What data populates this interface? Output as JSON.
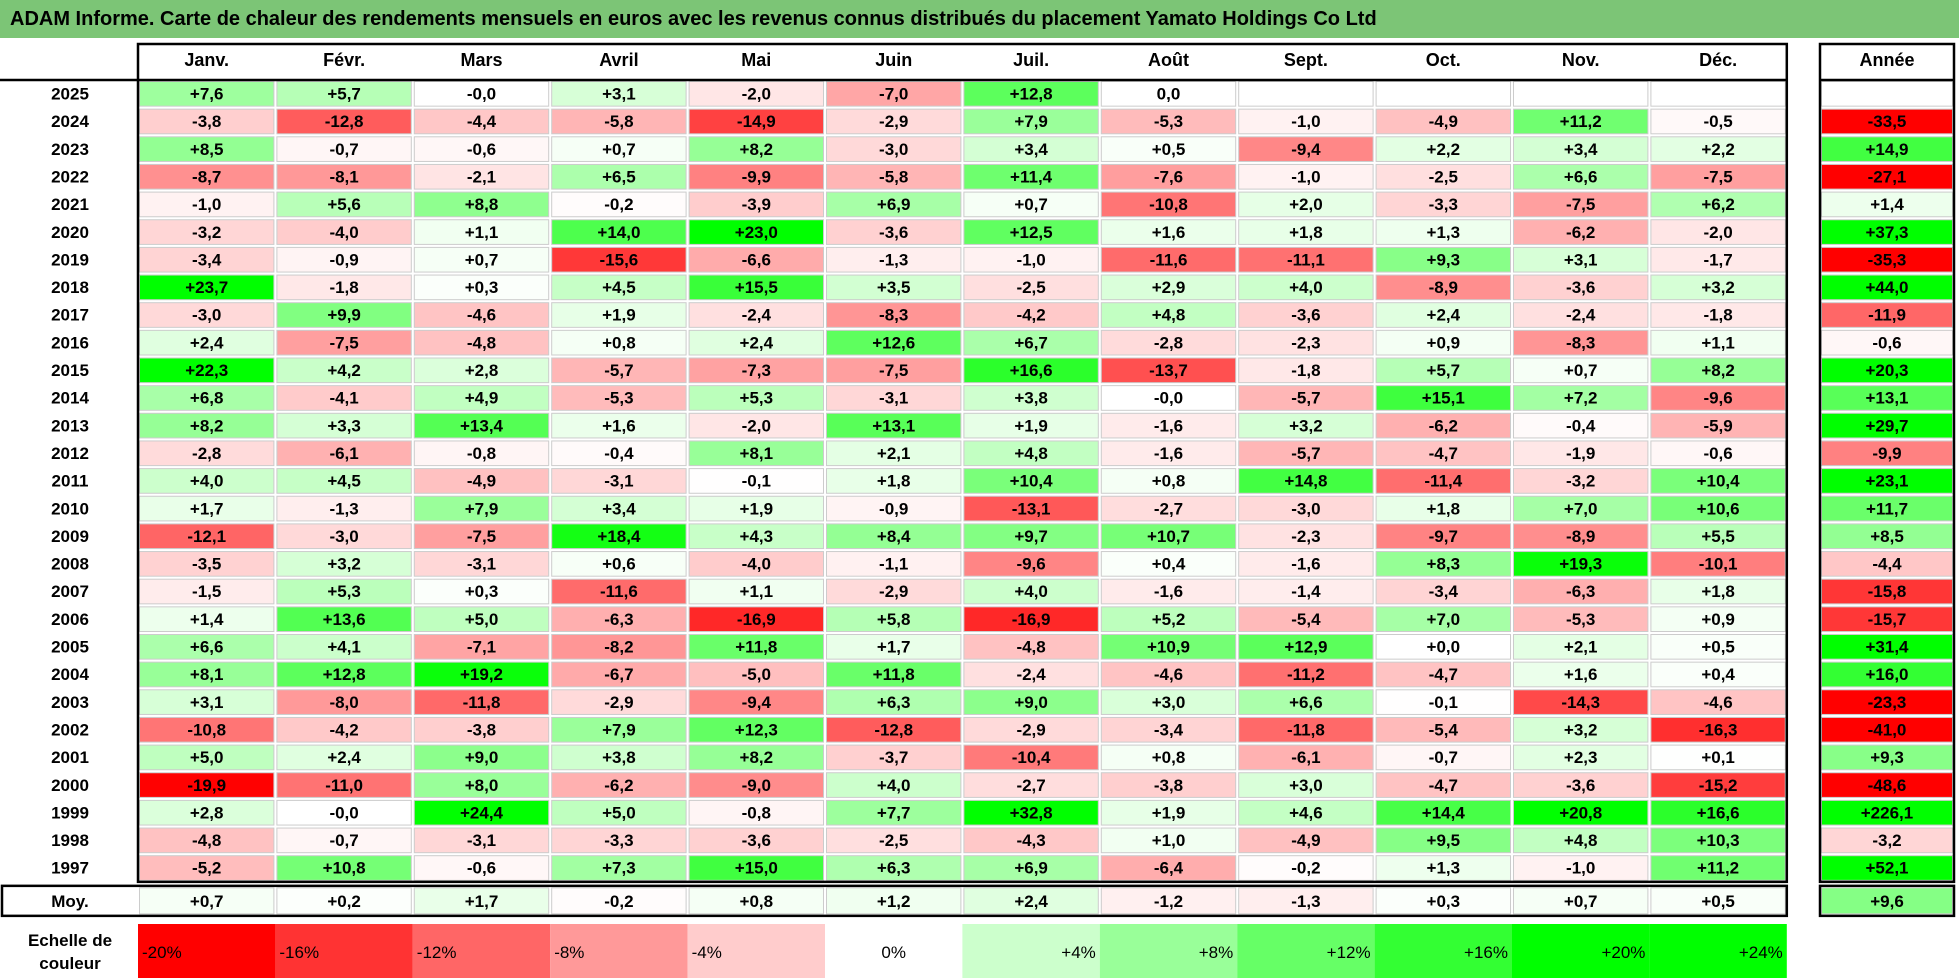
{
  "title": "ADAM Informe. Carte de chaleur des rendements mensuels en euros avec les revenus connus distribués du placement Yamato Holdings Co Ltd",
  "chart_data": {
    "type": "heatmap",
    "title": "ADAM Informe. Carte de chaleur des rendements mensuels en euros avec les revenus connus distribués du placement Yamato Holdings Co Ltd",
    "columns": [
      "Janv.",
      "Févr.",
      "Mars",
      "Avril",
      "Mai",
      "Juin",
      "Juil.",
      "Août",
      "Sept.",
      "Oct.",
      "Nov.",
      "Déc."
    ],
    "year_header": "Année",
    "rows": [
      {
        "year": "2025",
        "values": [
          "+7,6",
          "+5,7",
          "-0,0",
          "+3,1",
          "-2,0",
          "-7,0",
          "+12,8",
          "0,0",
          "",
          "",
          "",
          ""
        ],
        "annual": ""
      },
      {
        "year": "2024",
        "values": [
          "-3,8",
          "-12,8",
          "-4,4",
          "-5,8",
          "-14,9",
          "-2,9",
          "+7,9",
          "-5,3",
          "-1,0",
          "-4,9",
          "+11,2",
          "-0,5"
        ],
        "annual": "-33,5"
      },
      {
        "year": "2023",
        "values": [
          "+8,5",
          "-0,7",
          "-0,6",
          "+0,7",
          "+8,2",
          "-3,0",
          "+3,4",
          "+0,5",
          "-9,4",
          "+2,2",
          "+3,4",
          "+2,2"
        ],
        "annual": "+14,9"
      },
      {
        "year": "2022",
        "values": [
          "-8,7",
          "-8,1",
          "-2,1",
          "+6,5",
          "-9,9",
          "-5,8",
          "+11,4",
          "-7,6",
          "-1,0",
          "-2,5",
          "+6,6",
          "-7,5"
        ],
        "annual": "-27,1"
      },
      {
        "year": "2021",
        "values": [
          "-1,0",
          "+5,6",
          "+8,8",
          "-0,2",
          "-3,9",
          "+6,9",
          "+0,7",
          "-10,8",
          "+2,0",
          "-3,3",
          "-7,5",
          "+6,2"
        ],
        "annual": "+1,4"
      },
      {
        "year": "2020",
        "values": [
          "-3,2",
          "-4,0",
          "+1,1",
          "+14,0",
          "+23,0",
          "-3,6",
          "+12,5",
          "+1,6",
          "+1,8",
          "+1,3",
          "-6,2",
          "-2,0"
        ],
        "annual": "+37,3"
      },
      {
        "year": "2019",
        "values": [
          "-3,4",
          "-0,9",
          "+0,7",
          "-15,6",
          "-6,6",
          "-1,3",
          "-1,0",
          "-11,6",
          "-11,1",
          "+9,3",
          "+3,1",
          "-1,7"
        ],
        "annual": "-35,3"
      },
      {
        "year": "2018",
        "values": [
          "+23,7",
          "-1,8",
          "+0,3",
          "+4,5",
          "+15,5",
          "+3,5",
          "-2,5",
          "+2,9",
          "+4,0",
          "-8,9",
          "-3,6",
          "+3,2"
        ],
        "annual": "+44,0"
      },
      {
        "year": "2017",
        "values": [
          "-3,0",
          "+9,9",
          "-4,6",
          "+1,9",
          "-2,4",
          "-8,3",
          "-4,2",
          "+4,8",
          "-3,6",
          "+2,4",
          "-2,4",
          "-1,8"
        ],
        "annual": "-11,9"
      },
      {
        "year": "2016",
        "values": [
          "+2,4",
          "-7,5",
          "-4,8",
          "+0,8",
          "+2,4",
          "+12,6",
          "+6,7",
          "-2,8",
          "-2,3",
          "+0,9",
          "-8,3",
          "+1,1"
        ],
        "annual": "-0,6"
      },
      {
        "year": "2015",
        "values": [
          "+22,3",
          "+4,2",
          "+2,8",
          "-5,7",
          "-7,3",
          "-7,5",
          "+16,6",
          "-13,7",
          "-1,8",
          "+5,7",
          "+0,7",
          "+8,2"
        ],
        "annual": "+20,3"
      },
      {
        "year": "2014",
        "values": [
          "+6,8",
          "-4,1",
          "+4,9",
          "-5,3",
          "+5,3",
          "-3,1",
          "+3,8",
          "-0,0",
          "-5,7",
          "+15,1",
          "+7,2",
          "-9,6"
        ],
        "annual": "+13,1"
      },
      {
        "year": "2013",
        "values": [
          "+8,2",
          "+3,3",
          "+13,4",
          "+1,6",
          "-2,0",
          "+13,1",
          "+1,9",
          "-1,6",
          "+3,2",
          "-6,2",
          "-0,4",
          "-5,9"
        ],
        "annual": "+29,7"
      },
      {
        "year": "2012",
        "values": [
          "-2,8",
          "-6,1",
          "-0,8",
          "-0,4",
          "+8,1",
          "+2,1",
          "+4,8",
          "-1,6",
          "-5,7",
          "-4,7",
          "-1,9",
          "-0,6"
        ],
        "annual": "-9,9"
      },
      {
        "year": "2011",
        "values": [
          "+4,0",
          "+4,5",
          "-4,9",
          "-3,1",
          "-0,1",
          "+1,8",
          "+10,4",
          "+0,8",
          "+14,8",
          "-11,4",
          "-3,2",
          "+10,4"
        ],
        "annual": "+23,1"
      },
      {
        "year": "2010",
        "values": [
          "+1,7",
          "-1,3",
          "+7,9",
          "+3,4",
          "+1,9",
          "-0,9",
          "-13,1",
          "-2,7",
          "-3,0",
          "+1,8",
          "+7,0",
          "+10,6"
        ],
        "annual": "+11,7"
      },
      {
        "year": "2009",
        "values": [
          "-12,1",
          "-3,0",
          "-7,5",
          "+18,4",
          "+4,3",
          "+8,4",
          "+9,7",
          "+10,7",
          "-2,3",
          "-9,7",
          "-8,9",
          "+5,5"
        ],
        "annual": "+8,5"
      },
      {
        "year": "2008",
        "values": [
          "-3,5",
          "+3,2",
          "-3,1",
          "+0,6",
          "-4,0",
          "-1,1",
          "-9,6",
          "+0,4",
          "-1,6",
          "+8,3",
          "+19,3",
          "-10,1"
        ],
        "annual": "-4,4"
      },
      {
        "year": "2007",
        "values": [
          "-1,5",
          "+5,3",
          "+0,3",
          "-11,6",
          "+1,1",
          "-2,9",
          "+4,0",
          "-1,6",
          "-1,4",
          "-3,4",
          "-6,3",
          "+1,8"
        ],
        "annual": "-15,8"
      },
      {
        "year": "2006",
        "values": [
          "+1,4",
          "+13,6",
          "+5,0",
          "-6,3",
          "-16,9",
          "+5,8",
          "-16,9",
          "+5,2",
          "-5,4",
          "+7,0",
          "-5,3",
          "+0,9"
        ],
        "annual": "-15,7"
      },
      {
        "year": "2005",
        "values": [
          "+6,6",
          "+4,1",
          "-7,1",
          "-8,2",
          "+11,8",
          "+1,7",
          "-4,8",
          "+10,9",
          "+12,9",
          "+0,0",
          "+2,1",
          "+0,5"
        ],
        "annual": "+31,4"
      },
      {
        "year": "2004",
        "values": [
          "+8,1",
          "+12,8",
          "+19,2",
          "-6,7",
          "-5,0",
          "+11,8",
          "-2,4",
          "-4,6",
          "-11,2",
          "-4,7",
          "+1,6",
          "+0,4"
        ],
        "annual": "+16,0"
      },
      {
        "year": "2003",
        "values": [
          "+3,1",
          "-8,0",
          "-11,8",
          "-2,9",
          "-9,4",
          "+6,3",
          "+9,0",
          "+3,0",
          "+6,6",
          "-0,1",
          "-14,3",
          "-4,6"
        ],
        "annual": "-23,3"
      },
      {
        "year": "2002",
        "values": [
          "-10,8",
          "-4,2",
          "-3,8",
          "+7,9",
          "+12,3",
          "-12,8",
          "-2,9",
          "-3,4",
          "-11,8",
          "-5,4",
          "+3,2",
          "-16,3"
        ],
        "annual": "-41,0"
      },
      {
        "year": "2001",
        "values": [
          "+5,0",
          "+2,4",
          "+9,0",
          "+3,8",
          "+8,2",
          "-3,7",
          "-10,4",
          "+0,8",
          "-6,1",
          "-0,7",
          "+2,3",
          "+0,1"
        ],
        "annual": "+9,3"
      },
      {
        "year": "2000",
        "values": [
          "-19,9",
          "-11,0",
          "+8,0",
          "-6,2",
          "-9,0",
          "+4,0",
          "-2,7",
          "-3,8",
          "+3,0",
          "-4,7",
          "-3,6",
          "-15,2"
        ],
        "annual": "-48,6"
      },
      {
        "year": "1999",
        "values": [
          "+2,8",
          "-0,0",
          "+24,4",
          "+5,0",
          "-0,8",
          "+7,7",
          "+32,8",
          "+1,9",
          "+4,6",
          "+14,4",
          "+20,8",
          "+16,6"
        ],
        "annual": "+226,1"
      },
      {
        "year": "1998",
        "values": [
          "-4,8",
          "-0,7",
          "-3,1",
          "-3,3",
          "-3,6",
          "-2,5",
          "-4,3",
          "+1,0",
          "-4,9",
          "+9,5",
          "+4,8",
          "+10,3"
        ],
        "annual": "-3,2"
      },
      {
        "year": "1997",
        "values": [
          "-5,2",
          "+10,8",
          "-0,6",
          "+7,3",
          "+15,0",
          "+6,3",
          "+6,9",
          "-6,4",
          "-0,2",
          "+1,3",
          "-1,0",
          "+11,2"
        ],
        "annual": "+52,1"
      }
    ],
    "average": {
      "label": "Moy.",
      "values": [
        "+0,7",
        "+0,2",
        "+1,7",
        "-0,2",
        "+0,8",
        "+1,2",
        "+2,4",
        "-1,2",
        "-1,3",
        "+0,3",
        "+0,7",
        "+0,5"
      ],
      "annual": "+9,6"
    },
    "color_scale": {
      "label": "Echelle de couleur",
      "steps": [
        {
          "label": "-20%",
          "value": -20,
          "color": "#ff0000"
        },
        {
          "label": "-16%",
          "value": -16,
          "color": "#ff3333"
        },
        {
          "label": "-12%",
          "value": -12,
          "color": "#ff6666"
        },
        {
          "label": "-8%",
          "value": -8,
          "color": "#ff9999"
        },
        {
          "label": "-4%",
          "value": -4,
          "color": "#ffcccc"
        },
        {
          "label": "0%",
          "value": 0,
          "color": "#ffffff"
        },
        {
          "label": "+4%",
          "value": 4,
          "color": "#ccffcc"
        },
        {
          "label": "+8%",
          "value": 8,
          "color": "#99ff99"
        },
        {
          "label": "+12%",
          "value": 12,
          "color": "#66ff66"
        },
        {
          "label": "+16%",
          "value": 16,
          "color": "#33ff33"
        },
        {
          "label": "+20%",
          "value": 20,
          "color": "#00ff00"
        },
        {
          "label": "+24%",
          "value": 24,
          "color": "#00ff00"
        }
      ]
    }
  }
}
